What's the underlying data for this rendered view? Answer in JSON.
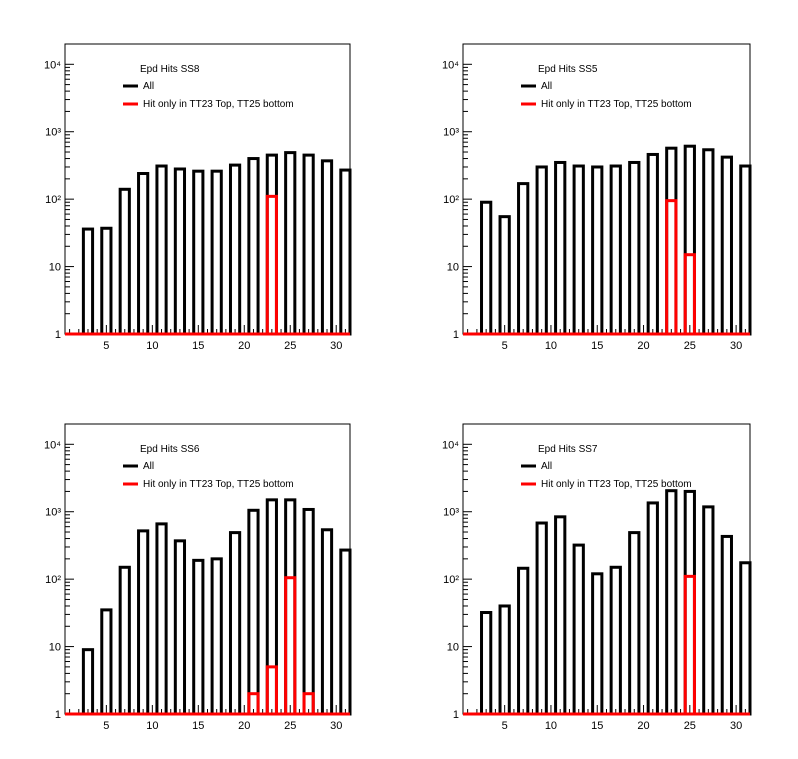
{
  "colors": {
    "all": "#000000",
    "subset": "#ff0000",
    "frame": "#000000",
    "background": "#ffffff"
  },
  "chart_data": [
    {
      "type": "bar",
      "title": "Epd Hits SS8",
      "xlabel": "",
      "ylabel": "",
      "xlim": [
        0.5,
        31.5
      ],
      "ylim": [
        1,
        20000
      ],
      "yscale": "log",
      "xticks": [
        "5",
        "10",
        "15",
        "20",
        "25",
        "30"
      ],
      "yticks": [
        "1",
        "10",
        "10²",
        "10³",
        "10⁴"
      ],
      "legend_position": "top-left",
      "series": [
        {
          "name": "All",
          "color": "#000000",
          "x": [
            3,
            5,
            7,
            9,
            11,
            13,
            15,
            17,
            19,
            21,
            23,
            25,
            27,
            29,
            31
          ],
          "values": [
            36,
            37,
            140,
            240,
            310,
            280,
            260,
            260,
            320,
            400,
            450,
            490,
            450,
            370,
            270
          ]
        },
        {
          "name": "Hit only in TT23 Top, TT25 bottom",
          "color": "#ff0000",
          "x": [
            23
          ],
          "values": [
            110
          ]
        }
      ]
    },
    {
      "type": "bar",
      "title": "Epd Hits SS5",
      "xlabel": "",
      "ylabel": "",
      "xlim": [
        0.5,
        31.5
      ],
      "ylim": [
        1,
        20000
      ],
      "yscale": "log",
      "xticks": [
        "5",
        "10",
        "15",
        "20",
        "25",
        "30"
      ],
      "yticks": [
        "1",
        "10",
        "10²",
        "10³",
        "10⁴"
      ],
      "legend_position": "top-left",
      "series": [
        {
          "name": "All",
          "color": "#000000",
          "x": [
            3,
            5,
            7,
            9,
            11,
            13,
            15,
            17,
            19,
            21,
            23,
            25,
            27,
            29,
            31
          ],
          "values": [
            90,
            55,
            170,
            300,
            350,
            310,
            300,
            310,
            350,
            460,
            570,
            610,
            540,
            420,
            310
          ]
        },
        {
          "name": "Hit only in TT23 Top, TT25 bottom",
          "color": "#ff0000",
          "x": [
            23,
            25
          ],
          "values": [
            95,
            15
          ]
        }
      ]
    },
    {
      "type": "bar",
      "title": "Epd Hits SS6",
      "xlabel": "",
      "ylabel": "",
      "xlim": [
        0.5,
        31.5
      ],
      "ylim": [
        1,
        20000
      ],
      "yscale": "log",
      "xticks": [
        "5",
        "10",
        "15",
        "20",
        "25",
        "30"
      ],
      "yticks": [
        "1",
        "10",
        "10²",
        "10³",
        "10⁴"
      ],
      "legend_position": "top-left",
      "series": [
        {
          "name": "All",
          "color": "#000000",
          "x": [
            3,
            5,
            7,
            9,
            11,
            13,
            15,
            17,
            19,
            21,
            23,
            25,
            27,
            29,
            31
          ],
          "values": [
            9,
            35,
            150,
            520,
            660,
            370,
            190,
            200,
            490,
            1050,
            1500,
            1500,
            1080,
            540,
            270
          ]
        },
        {
          "name": "Hit only in TT23 Top, TT25 bottom",
          "color": "#ff0000",
          "x": [
            21,
            23,
            25,
            27
          ],
          "values": [
            2,
            5,
            105,
            2
          ]
        }
      ]
    },
    {
      "type": "bar",
      "title": "Epd Hits SS7",
      "xlabel": "",
      "ylabel": "",
      "xlim": [
        0.5,
        31.5
      ],
      "ylim": [
        1,
        20000
      ],
      "yscale": "log",
      "xticks": [
        "5",
        "10",
        "15",
        "20",
        "25",
        "30"
      ],
      "yticks": [
        "1",
        "10",
        "10²",
        "10³",
        "10⁴"
      ],
      "legend_position": "top-left",
      "series": [
        {
          "name": "All",
          "color": "#000000",
          "x": [
            3,
            5,
            7,
            9,
            11,
            13,
            15,
            17,
            19,
            21,
            23,
            25,
            27,
            29,
            31
          ],
          "values": [
            32,
            40,
            145,
            680,
            840,
            320,
            120,
            150,
            490,
            1350,
            2050,
            2000,
            1180,
            430,
            175
          ]
        },
        {
          "name": "Hit only in TT23 Top, TT25 bottom",
          "color": "#ff0000",
          "x": [
            25
          ],
          "values": [
            110
          ]
        }
      ]
    }
  ]
}
